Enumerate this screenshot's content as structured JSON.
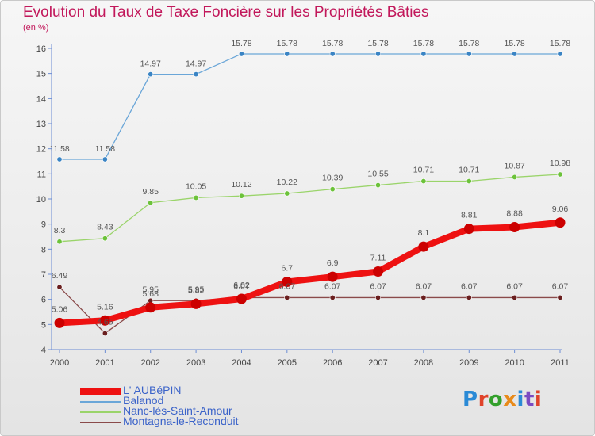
{
  "title": "Evolution du Taux de Taxe Foncière sur les Propriétés Bâties",
  "unit_label": "(en %)",
  "logo": {
    "text": "Proxiti",
    "letter_colors": [
      "#2a8ad6",
      "#e0432a",
      "#33a02c",
      "#e88a1a",
      "#2a8ad6",
      "#7a4bc2",
      "#e0432a"
    ]
  },
  "chart_data": {
    "type": "line",
    "x": [
      "2000",
      "2001",
      "2002",
      "2003",
      "2004",
      "2005",
      "2006",
      "2007",
      "2008",
      "2009",
      "2010",
      "2011"
    ],
    "ylim": [
      4,
      16
    ],
    "yticks": [
      "4",
      "5",
      "6",
      "7",
      "8",
      "9",
      "10",
      "11",
      "12",
      "13",
      "14",
      "15",
      "16"
    ],
    "grid": false,
    "legend_position": "bottom-left",
    "series": [
      {
        "name": "L' AUBéPIN",
        "color": "#ee1111",
        "marker_color": "#cc0000",
        "values": [
          5.06,
          5.16,
          5.68,
          5.82,
          6.02,
          6.7,
          6.9,
          7.11,
          8.1,
          8.81,
          8.88,
          9.06
        ],
        "labels": [
          "5.06",
          "5.16",
          "5.68",
          "5.82",
          "6.02",
          "6.7",
          "6.9",
          "7.11",
          "8.1",
          "8.81",
          "8.88",
          "9.06"
        ]
      },
      {
        "name": "Balanod",
        "color": "#6aa6d8",
        "marker_color": "#3a84c4",
        "values": [
          11.58,
          11.58,
          14.97,
          14.97,
          15.78,
          15.78,
          15.78,
          15.78,
          15.78,
          15.78,
          15.78,
          15.78
        ],
        "labels": [
          "11.58",
          "11.58",
          "14.97",
          "14.97",
          "15.78",
          "15.78",
          "15.78",
          "15.78",
          "15.78",
          "15.78",
          "15.78",
          "15.78"
        ]
      },
      {
        "name": "Nanc-lès-Saint-Amour",
        "color": "#9ad46a",
        "marker_color": "#6cc23a",
        "values": [
          8.3,
          8.43,
          9.85,
          10.05,
          10.12,
          10.22,
          10.39,
          10.55,
          10.71,
          10.71,
          10.87,
          10.98
        ],
        "labels": [
          "8.3",
          "8.43",
          "9.85",
          "10.05",
          "10.12",
          "10.22",
          "10.39",
          "10.55",
          "10.71",
          "10.71",
          "10.87",
          "10.98"
        ]
      },
      {
        "name": "Montagna-le-Reconduit",
        "color": "#8a4a4a",
        "marker_color": "#6a1f1f",
        "values": [
          6.49,
          4.65,
          5.95,
          5.95,
          6.07,
          6.07,
          6.07,
          6.07,
          6.07,
          6.07,
          6.07,
          6.07
        ],
        "labels": [
          "6.49",
          "4.65",
          "5.95",
          "5.95",
          "6.07",
          "6.07",
          "6.07",
          "6.07",
          "6.07",
          "6.07",
          "6.07",
          "6.07"
        ]
      }
    ]
  }
}
